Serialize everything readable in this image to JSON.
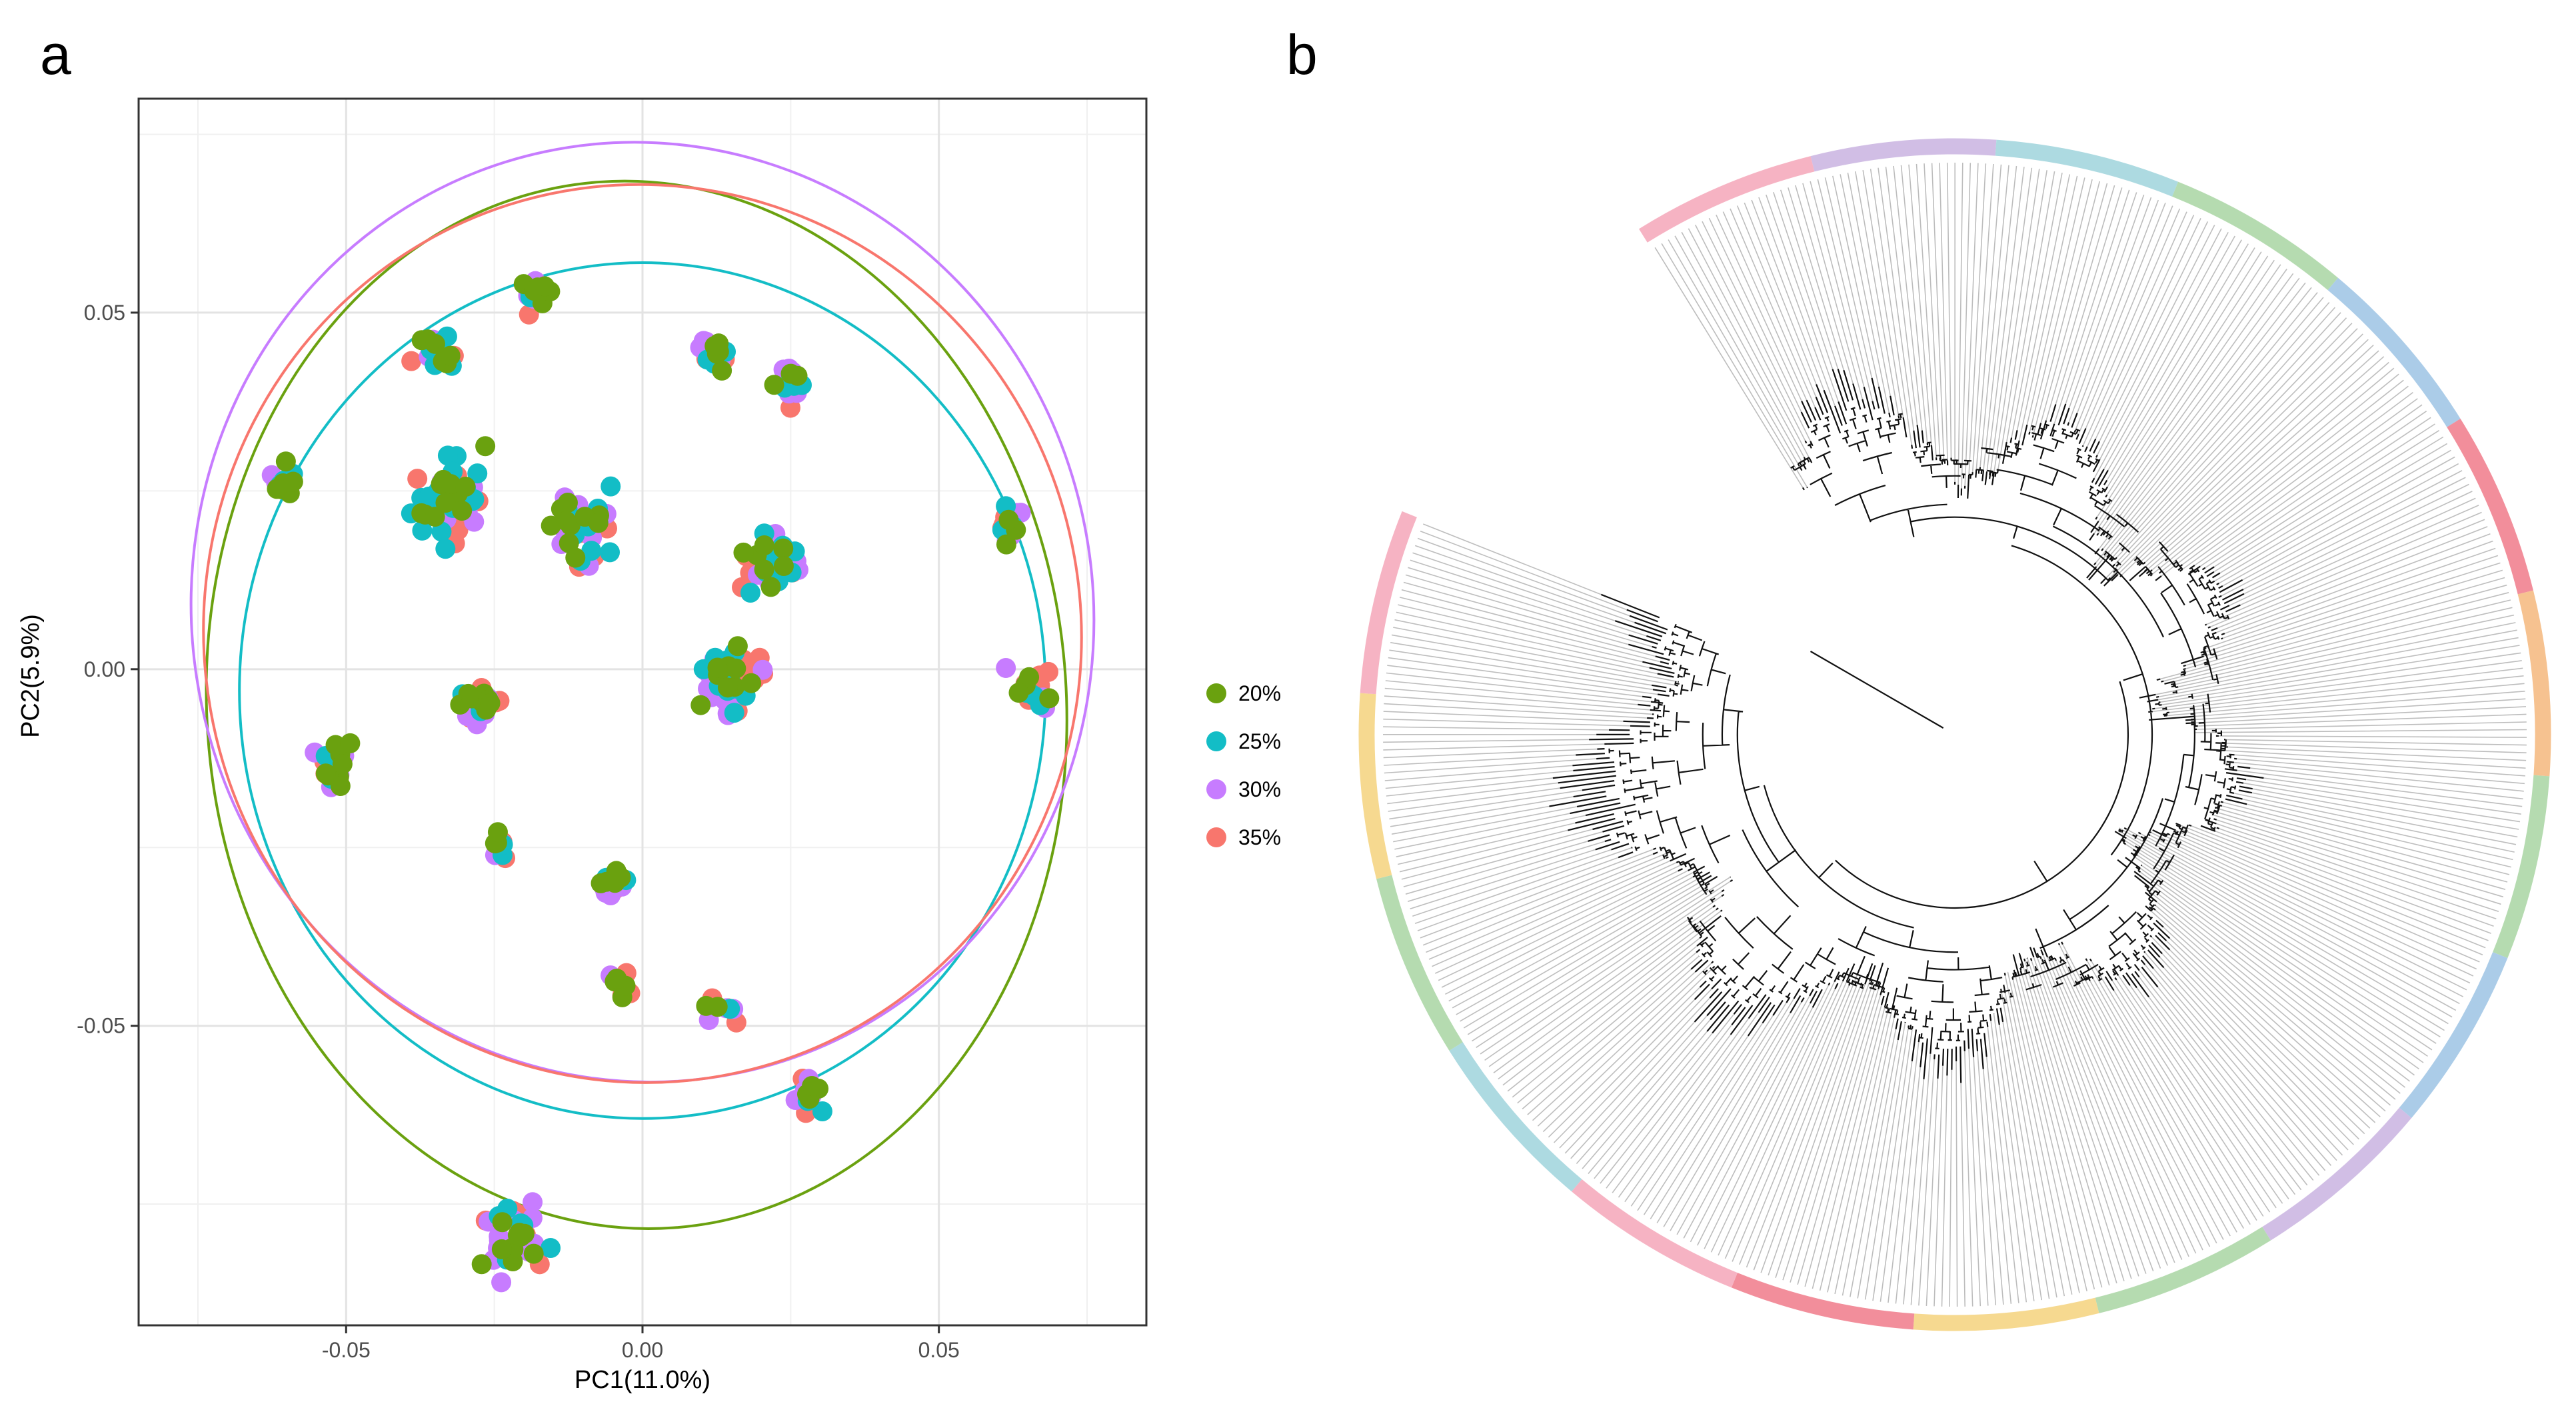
{
  "panels": {
    "a_label": "a",
    "b_label": "b"
  },
  "chart_data": [
    {
      "type": "scatter",
      "title": "",
      "xlabel": "PC1(11.0%)",
      "ylabel": "PC2(5.9%)",
      "xlim": [
        -0.085,
        0.085
      ],
      "ylim": [
        -0.092,
        0.08
      ],
      "xticks": [
        -0.05,
        0.0,
        0.05
      ],
      "xtick_labels": [
        "-0.05",
        "0.00",
        "0.05"
      ],
      "yticks": [
        -0.05,
        0.0,
        0.05
      ],
      "ytick_labels": [
        "-0.05",
        "0.00",
        "0.05"
      ],
      "grid": true,
      "legend_position": "right",
      "series": [
        {
          "name": "20%",
          "color": "#6aa10f"
        },
        {
          "name": "25%",
          "color": "#13bdc6"
        },
        {
          "name": "30%",
          "color": "#c77cff"
        },
        {
          "name": "35%",
          "color": "#f8766d"
        }
      ],
      "clusters": [
        {
          "x": -0.061,
          "y": 0.026,
          "n": 14
        },
        {
          "x": -0.034,
          "y": 0.044,
          "n": 20
        },
        {
          "x": -0.018,
          "y": 0.053,
          "n": 18
        },
        {
          "x": -0.032,
          "y": 0.024,
          "n": 60
        },
        {
          "x": -0.01,
          "y": 0.02,
          "n": 40
        },
        {
          "x": 0.012,
          "y": 0.045,
          "n": 18
        },
        {
          "x": 0.025,
          "y": 0.04,
          "n": 18
        },
        {
          "x": 0.022,
          "y": 0.015,
          "n": 40
        },
        {
          "x": 0.062,
          "y": 0.02,
          "n": 14
        },
        {
          "x": -0.052,
          "y": -0.013,
          "n": 24
        },
        {
          "x": -0.028,
          "y": -0.005,
          "n": 24
        },
        {
          "x": 0.015,
          "y": -0.002,
          "n": 50
        },
        {
          "x": 0.066,
          "y": -0.003,
          "n": 22
        },
        {
          "x": -0.024,
          "y": -0.025,
          "n": 10
        },
        {
          "x": -0.005,
          "y": -0.03,
          "n": 14
        },
        {
          "x": -0.003,
          "y": -0.045,
          "n": 10
        },
        {
          "x": 0.013,
          "y": -0.048,
          "n": 10
        },
        {
          "x": 0.028,
          "y": -0.06,
          "n": 14
        },
        {
          "x": -0.022,
          "y": -0.08,
          "n": 40
        }
      ],
      "ellipses": [
        {
          "group": "20%",
          "cx": -0.001,
          "cy": -0.005,
          "rx": 0.0725,
          "ry": 0.0735,
          "angle": -4
        },
        {
          "group": "25%",
          "cx": 0.0,
          "cy": -0.003,
          "rx": 0.068,
          "ry": 0.06,
          "angle": 0
        },
        {
          "group": "30%",
          "cx": 0.0,
          "cy": 0.008,
          "rx": 0.076,
          "ry": 0.066,
          "angle": -12
        },
        {
          "group": "35%",
          "cx": 0.0,
          "cy": 0.005,
          "rx": 0.074,
          "ry": 0.063,
          "angle": -10
        }
      ]
    },
    {
      "type": "circular_tree",
      "title": "",
      "tips": 420,
      "gap_start_deg": 202,
      "gap_end_deg": 238,
      "ring_colors": [
        "#f4a6b8",
        "#c9b3e0",
        "#9fd3dc",
        "#a8d5a2",
        "#9cc3e4",
        "#f07a8a",
        "#f4b77d",
        "#a8d5a2",
        "#9cc3e4",
        "#c9b3e0",
        "#a8d5a2",
        "#f4d27d",
        "#f07a8a",
        "#f4a6b8",
        "#9fd3dc",
        "#a8d5a2",
        "#f4d27d",
        "#f4a6b8"
      ]
    }
  ]
}
